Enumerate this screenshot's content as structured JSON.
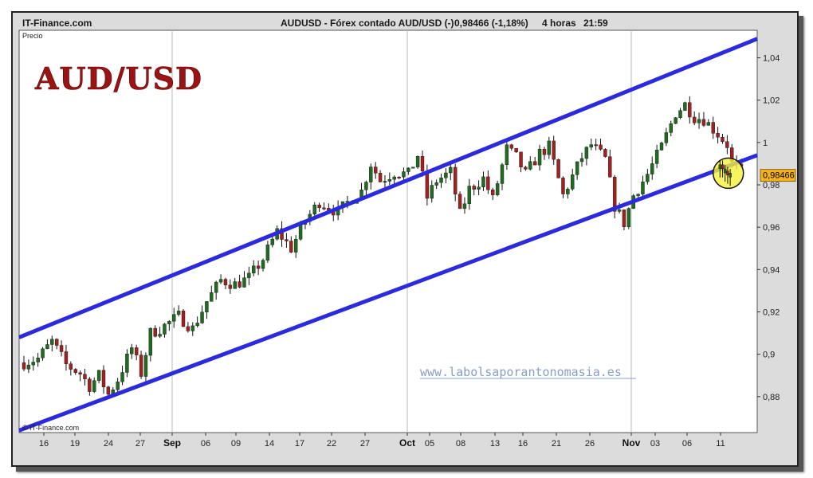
{
  "header": {
    "source": "IT-Finance.com",
    "instrument": "AUDUSD - Fórex contado AUD/USD (-)",
    "last": "0,98466 (-1,18%)",
    "timeframe": "4 horas",
    "time": "21:59"
  },
  "panel_label": "Precio",
  "overlay_title": "AUD/USD",
  "watermark": "www.labolsaporantonomasia.es",
  "copyright": "© IT-Finance.com",
  "price_box": "0,98466",
  "colors": {
    "channel": "#2b2bdd",
    "bull": "#1f6b1f",
    "bear": "#a32020",
    "wick": "#111111",
    "highlight_fill": "#f6f03a",
    "price_box_fill": "#f2b218",
    "title": "#9a1414"
  },
  "chart_data": {
    "type": "candlestick",
    "title": "AUDUSD - Fórex contado AUD/USD (-)",
    "timeframe": "4 horas",
    "y_ticks": [
      "1,04",
      "1,02",
      "1",
      "0,98",
      "0,96",
      "0,94",
      "0,92",
      "0,9",
      "0,88"
    ],
    "y_tick_values": [
      1.04,
      1.02,
      1.0,
      0.98,
      0.96,
      0.94,
      0.92,
      0.9,
      0.88
    ],
    "ylim": [
      0.863,
      1.053
    ],
    "x_ticks": [
      "16",
      "19",
      "24",
      "27",
      "Sep",
      "06",
      "09",
      "14",
      "17",
      "22",
      "27",
      "Oct",
      "05",
      "08",
      "13",
      "16",
      "21",
      "26",
      "Nov",
      "03",
      "06",
      "11"
    ],
    "month_ticks": [
      "Sep",
      "Oct",
      "Nov"
    ],
    "x_range_days": [
      1,
      97
    ],
    "x_tick_days": [
      16,
      19,
      24,
      27,
      32,
      37,
      40,
      45,
      48,
      53,
      58,
      62,
      66,
      69,
      74,
      77,
      82,
      87,
      93,
      95,
      98,
      103
    ],
    "grid_vertical_days": [
      32,
      62,
      93
    ],
    "last_price": 0.98466,
    "last_change": "-1,18%",
    "channel_lines": [
      {
        "name": "upper",
        "points": [
          [
            0,
            0.908
          ],
          [
            97,
            1.049
          ]
        ]
      },
      {
        "name": "lower",
        "points": [
          [
            0,
            0.864
          ],
          [
            97,
            0.994
          ]
        ]
      }
    ],
    "highlight": {
      "x": 93.2,
      "y": 0.9855
    },
    "anchors": [
      [
        0,
        0.896
      ],
      [
        3,
        0.898
      ],
      [
        6,
        0.906
      ],
      [
        9,
        0.895
      ],
      [
        12,
        0.891
      ],
      [
        14,
        0.885
      ],
      [
        16,
        0.89
      ],
      [
        18,
        0.881
      ],
      [
        20,
        0.888
      ],
      [
        23,
        0.903
      ],
      [
        25,
        0.891
      ],
      [
        27,
        0.91
      ],
      [
        29,
        0.912
      ],
      [
        33,
        0.918
      ],
      [
        36,
        0.912
      ],
      [
        39,
        0.925
      ],
      [
        42,
        0.935
      ],
      [
        45,
        0.933
      ],
      [
        48,
        0.936
      ],
      [
        51,
        0.945
      ],
      [
        54,
        0.958
      ],
      [
        57,
        0.95
      ],
      [
        60,
        0.963
      ],
      [
        63,
        0.972
      ],
      [
        67,
        0.967
      ],
      [
        70,
        0.974
      ],
      [
        72,
        0.977
      ],
      [
        74,
        0.99
      ],
      [
        76,
        0.982
      ],
      [
        79,
        0.986
      ],
      [
        82,
        0.985
      ],
      [
        84,
        0.994
      ],
      [
        86,
        0.974
      ],
      [
        88,
        0.982
      ],
      [
        91,
        0.986
      ],
      [
        93,
        0.966
      ],
      [
        95,
        0.978
      ],
      [
        98,
        0.983
      ],
      [
        100,
        0.973
      ],
      [
        103,
        0.997
      ],
      [
        105,
        0.993
      ],
      [
        107,
        0.985
      ],
      [
        110,
        0.995
      ],
      [
        112,
        0.998
      ],
      [
        115,
        0.975
      ],
      [
        117,
        0.984
      ],
      [
        119,
        0.993
      ],
      [
        121,
        0.999
      ],
      [
        124,
        0.992
      ],
      [
        126,
        0.97
      ],
      [
        128,
        0.962
      ],
      [
        130,
        0.975
      ],
      [
        133,
        0.985
      ],
      [
        136,
        0.998
      ],
      [
        139,
        1.014
      ],
      [
        141,
        1.018
      ],
      [
        143,
        1.012
      ],
      [
        145,
        1.011
      ],
      [
        148,
        1.004
      ],
      [
        150,
        0.999
      ],
      [
        151,
        0.99
      ],
      [
        153,
        0.986
      ]
    ]
  }
}
